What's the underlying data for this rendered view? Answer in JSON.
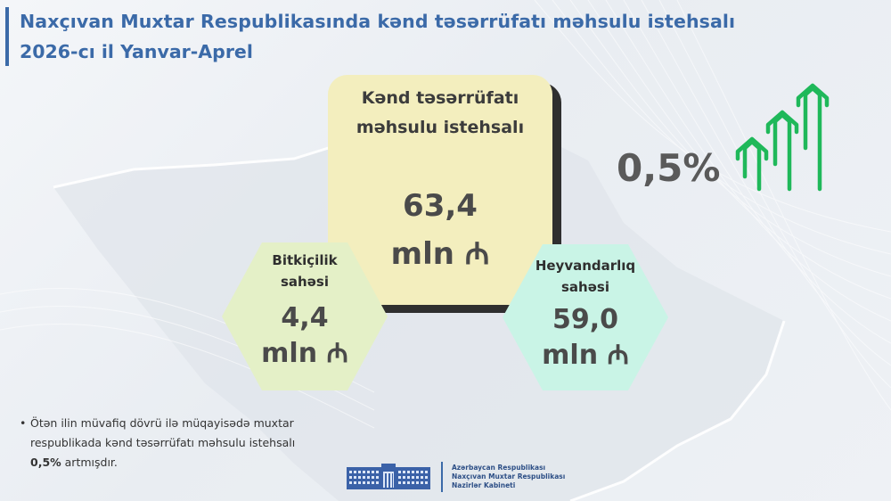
{
  "header": {
    "title": "Naxçıvan Muxtar Respublikasında kənd təsərrüfatı məhsulu istehsalı",
    "subtitle": "2026-cı il Yanvar-Aprel"
  },
  "main": {
    "label_line1": "Kənd təsərrüfatı",
    "label_line2": "məhsulu istehsalı",
    "value": "63,4",
    "unit": "mln ₼"
  },
  "crop": {
    "label_line1": "Bitkiçilik",
    "label_line2": "sahəsi",
    "value": "4,4",
    "unit": "mln ₼"
  },
  "livestock": {
    "label_line1": "Heyvandarlıq",
    "label_line2": "sahəsi",
    "value": "59,0",
    "unit": "mln ₼"
  },
  "growth": {
    "percent": "0,5%"
  },
  "note": {
    "bullet": "•",
    "text_before": "Ötən ilin müvafiq dövrü ilə müqayisədə muxtar respublikada kənd təsərrüfatı məhsulu istehsalı ",
    "text_bold": "0,5%",
    "text_after": " artmışdır."
  },
  "footer": {
    "org_line1": "Azərbaycan Respublikası",
    "org_line2": "Naxçıvan Muxtar Respublikası",
    "org_line3": "Nazirlər Kabineti"
  },
  "icons": {
    "growth_arrows": "growth-arrows-icon",
    "government_building": "government-building-icon"
  },
  "colors": {
    "title_blue": "#3b6aa8",
    "main_card": "#f3eebe",
    "crop_hex": "#e4f0c7",
    "livestock_hex": "#c9f4e6",
    "arrow_green": "#1fb85a"
  }
}
